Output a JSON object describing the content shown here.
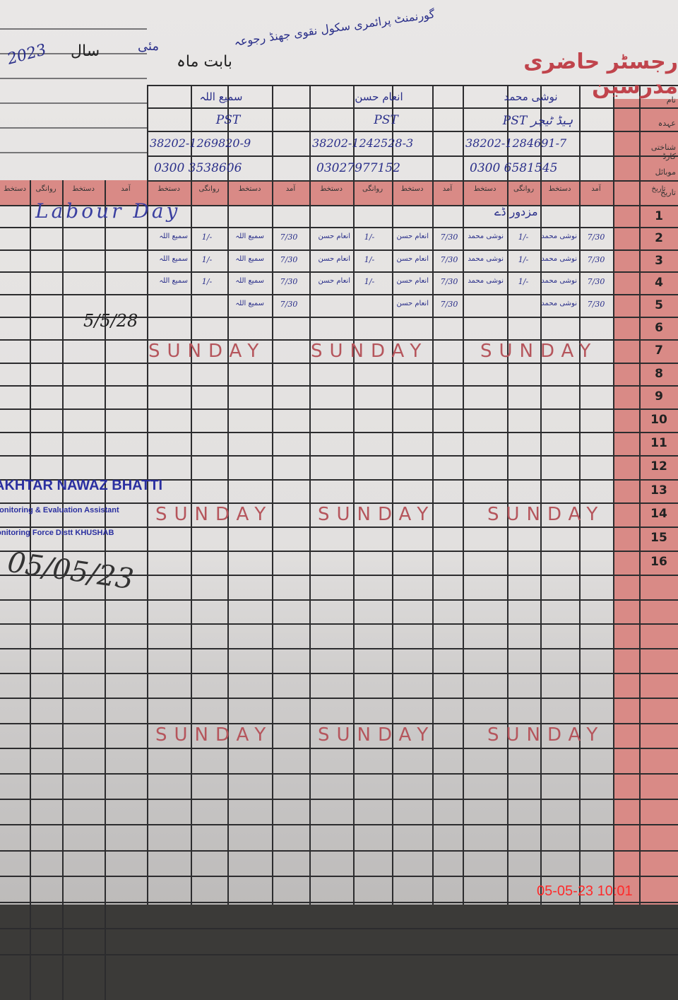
{
  "header": {
    "title": "رجسٹر حاضری مدرسین",
    "month_label": "بابت ماہ",
    "month": "مئی",
    "year_label": "سال",
    "year": "2023",
    "school": "گورنمنٹ پرائمری سکول نقوی جھنڈ رجوعہ"
  },
  "row_labels": [
    "نام",
    "عہدہ",
    "شناختی کارڈ",
    "موبائل",
    "تاریخ"
  ],
  "column_headers": [
    "آمد",
    "دستخط",
    "روانگی",
    "دستخط"
  ],
  "teachers": [
    {
      "name": "نوشی محمد",
      "designation": "PST ہیڈ ٹیچر",
      "cnic": "38202-1284691-7",
      "mobile": "0300 6581545"
    },
    {
      "name": "انعام حسن",
      "designation": "PST",
      "cnic": "38202-1242528-3",
      "mobile": "03027977152"
    },
    {
      "name": "سمیع اللہ",
      "designation": "PST",
      "cnic": "38202-1269820-9",
      "mobile": "0300 3538606"
    }
  ],
  "days": [
    "1",
    "2",
    "3",
    "4",
    "5",
    "6",
    "7",
    "8",
    "9",
    "10",
    "11",
    "12",
    "13",
    "14",
    "15",
    "16"
  ],
  "holiday_text": "Labour Day",
  "holiday_text_urdu": "مزدور ڈے",
  "entries": {
    "arrival": "7/30",
    "departure": "1/-"
  },
  "sunday_label": "SUNDAY",
  "initials": "5/5/28",
  "stamp": {
    "name": "AKHTAR NAWAZ BHATTI",
    "role": "Monitoring & Evaluation Assistant",
    "org": "Monitoring Force Distt KHUSHAB"
  },
  "visit_date": "05/05/23",
  "timestamp": "05-05-23  10:01",
  "colors": {
    "red_band": "#d98a86",
    "ink_blue": "#2a2f8a",
    "ink_red": "#b5555c",
    "timestamp": "#ff2a2a"
  }
}
